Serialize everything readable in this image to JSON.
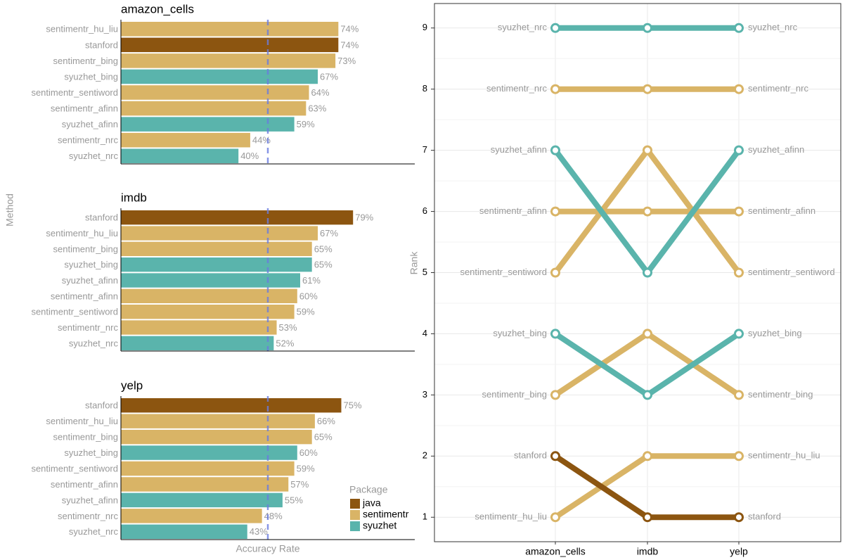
{
  "chart_data": [
    {
      "type": "barh",
      "title": "amazon_cells",
      "categories": [
        "sentimentr_hu_liu",
        "stanford",
        "sentimentr_bing",
        "syuzhet_bing",
        "sentimentr_sentiword",
        "sentimentr_afinn",
        "syuzhet_afinn",
        "sentimentr_nrc",
        "syuzhet_nrc"
      ],
      "values": [
        74,
        74,
        73,
        67,
        64,
        63,
        59,
        44,
        40
      ],
      "value_labels": [
        "74%",
        "74%",
        "73%",
        "67%",
        "64%",
        "63%",
        "59%",
        "44%",
        "40%"
      ],
      "colors": [
        "#d9b466",
        "#8c5510",
        "#d9b466",
        "#5ab4ac",
        "#d9b466",
        "#d9b466",
        "#5ab4ac",
        "#d9b466",
        "#5ab4ac"
      ],
      "xlim": [
        0,
        100
      ],
      "reference_line": 50
    },
    {
      "type": "barh",
      "title": "imdb",
      "ylabel": "Method",
      "categories": [
        "stanford",
        "sentimentr_hu_liu",
        "sentimentr_bing",
        "syuzhet_bing",
        "syuzhet_afinn",
        "sentimentr_afinn",
        "sentimentr_sentiword",
        "sentimentr_nrc",
        "syuzhet_nrc"
      ],
      "values": [
        79,
        67,
        65,
        65,
        61,
        60,
        59,
        53,
        52
      ],
      "value_labels": [
        "79%",
        "67%",
        "65%",
        "65%",
        "61%",
        "60%",
        "59%",
        "53%",
        "52%"
      ],
      "colors": [
        "#8c5510",
        "#d9b466",
        "#d9b466",
        "#5ab4ac",
        "#5ab4ac",
        "#d9b466",
        "#d9b466",
        "#d9b466",
        "#5ab4ac"
      ],
      "xlim": [
        0,
        100
      ],
      "reference_line": 50
    },
    {
      "type": "barh",
      "title": "yelp",
      "xlabel": "Accuracy Rate",
      "categories": [
        "stanford",
        "sentimentr_hu_liu",
        "sentimentr_bing",
        "syuzhet_bing",
        "sentimentr_sentiword",
        "sentimentr_afinn",
        "syuzhet_afinn",
        "sentimentr_nrc",
        "syuzhet_nrc"
      ],
      "values": [
        75,
        66,
        65,
        60,
        59,
        57,
        55,
        48,
        43
      ],
      "value_labels": [
        "75%",
        "66%",
        "65%",
        "60%",
        "59%",
        "57%",
        "55%",
        "48%",
        "43%"
      ],
      "colors": [
        "#8c5510",
        "#d9b466",
        "#d9b466",
        "#5ab4ac",
        "#d9b466",
        "#d9b466",
        "#5ab4ac",
        "#d9b466",
        "#5ab4ac"
      ],
      "xlim": [
        0,
        100
      ],
      "reference_line": 50,
      "legend": {
        "title": "Package",
        "items": [
          {
            "name": "java",
            "color": "#8c5510"
          },
          {
            "name": "sentimentr",
            "color": "#d9b466"
          },
          {
            "name": "syuzhet",
            "color": "#5ab4ac"
          }
        ]
      }
    },
    {
      "type": "line",
      "ylabel": "Rank",
      "categories": [
        "amazon_cells",
        "imdb",
        "yelp"
      ],
      "ylim": [
        9.4,
        0.6
      ],
      "yticks": [
        1,
        2,
        3,
        4,
        5,
        6,
        7,
        8,
        9
      ],
      "grid": true,
      "series": [
        {
          "name": "sentimentr_hu_liu",
          "color": "#d9b466",
          "values": [
            1,
            2,
            2
          ]
        },
        {
          "name": "stanford",
          "color": "#8c5510",
          "values": [
            2,
            1,
            1
          ]
        },
        {
          "name": "sentimentr_bing",
          "color": "#d9b466",
          "values": [
            3,
            4,
            3
          ]
        },
        {
          "name": "syuzhet_bing",
          "color": "#5ab4ac",
          "values": [
            4,
            3,
            4
          ]
        },
        {
          "name": "sentimentr_sentiword",
          "color": "#d9b466",
          "values": [
            5,
            7,
            5
          ]
        },
        {
          "name": "sentimentr_afinn",
          "color": "#d9b466",
          "values": [
            6,
            6,
            6
          ]
        },
        {
          "name": "syuzhet_afinn",
          "color": "#5ab4ac",
          "values": [
            7,
            5,
            7
          ]
        },
        {
          "name": "sentimentr_nrc",
          "color": "#d9b466",
          "values": [
            8,
            8,
            8
          ]
        },
        {
          "name": "syuzhet_nrc",
          "color": "#5ab4ac",
          "values": [
            9,
            9,
            9
          ]
        }
      ]
    }
  ]
}
